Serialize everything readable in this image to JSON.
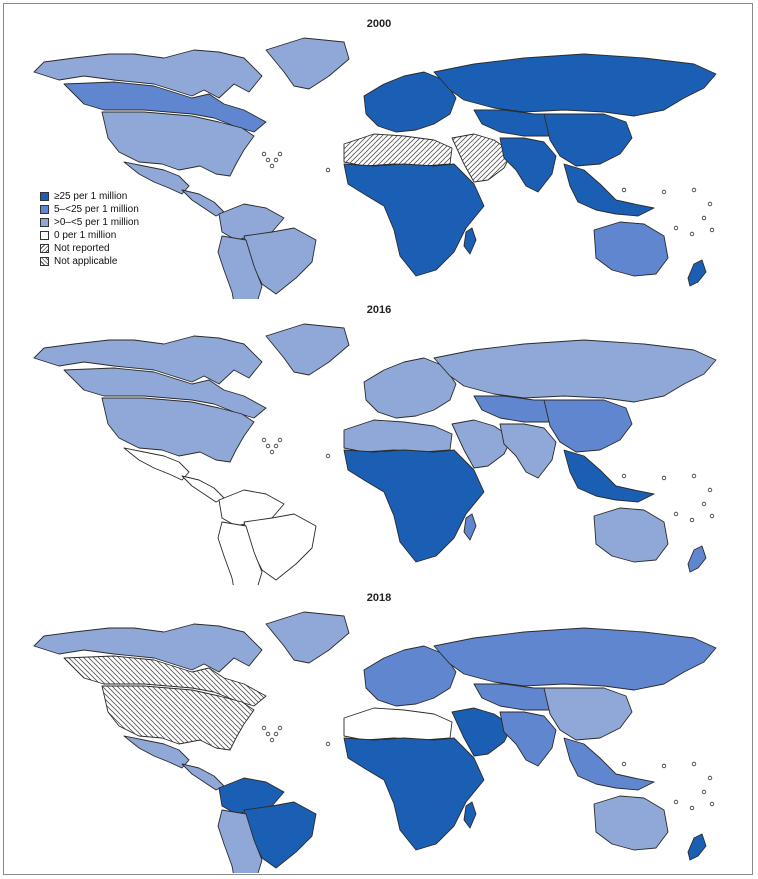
{
  "panels": [
    {
      "year": "2000",
      "colors": {
        "north_america": "#8fa8d8",
        "greenland": "#8fa8d8",
        "canada": "#5f86cf",
        "usa": "#8fa8d8",
        "mexico": "#8fa8d8",
        "central_america": "#8fa8d8",
        "south_america_north": "#8fa8d8",
        "brazil": "#8fa8d8",
        "south_america_south": "#8fa8d8",
        "europe": "#1b5fb4",
        "russia": "#1b5fb4",
        "north_africa": "not_reported",
        "africa": "#1b5fb4",
        "middle_east": "not_reported",
        "central_asia": "#1b5fb4",
        "south_asia": "#1b5fb4",
        "china": "#1b5fb4",
        "southeast_asia": "#1b5fb4",
        "australia": "#5f86cf",
        "new_zealand": "#1b5fb4",
        "madagascar": "#1b5fb4"
      }
    },
    {
      "year": "2016",
      "colors": {
        "north_america": "#8fa8d8",
        "greenland": "#8fa8d8",
        "canada": "#8fa8d8",
        "usa": "#8fa8d8",
        "mexico": "#ffffff",
        "central_america": "#ffffff",
        "south_america_north": "#ffffff",
        "brazil": "#ffffff",
        "south_america_south": "#ffffff",
        "europe": "#8fa8d8",
        "russia": "#8fa8d8",
        "north_africa": "#8fa8d8",
        "africa": "#1b5fb4",
        "middle_east": "#8fa8d8",
        "central_asia": "#5f86cf",
        "south_asia": "#8fa8d8",
        "china": "#5f86cf",
        "southeast_asia": "#1b5fb4",
        "australia": "#8fa8d8",
        "new_zealand": "#5f86cf",
        "madagascar": "#5f86cf"
      }
    },
    {
      "year": "2018",
      "colors": {
        "north_america": "#8fa8d8",
        "greenland": "#8fa8d8",
        "canada": "not_applicable",
        "usa": "not_applicable",
        "mexico": "#8fa8d8",
        "central_america": "#8fa8d8",
        "south_america_north": "#1b5fb4",
        "brazil": "#1b5fb4",
        "south_america_south": "#8fa8d8",
        "europe": "#5f86cf",
        "russia": "#5f86cf",
        "north_africa": "#ffffff",
        "africa": "#1b5fb4",
        "middle_east": "#1b5fb4",
        "central_asia": "#5f86cf",
        "south_asia": "#5f86cf",
        "china": "#8fa8d8",
        "southeast_asia": "#5f86cf",
        "australia": "#8fa8d8",
        "new_zealand": "#1b5fb4",
        "madagascar": "#1b5fb4"
      }
    }
  ],
  "legend": [
    {
      "label": "≥25 per 1 million",
      "color": "#1b5fb4"
    },
    {
      "label": "5–<25 per 1 million",
      "color": "#5f86cf"
    },
    {
      "label": ">0–<5 per 1 million",
      "color": "#8fa8d8"
    },
    {
      "label": "0 per 1 million",
      "color": "#ffffff"
    },
    {
      "label": "Not reported",
      "color": "not_reported"
    },
    {
      "label": "Not applicable",
      "color": "not_applicable"
    }
  ]
}
